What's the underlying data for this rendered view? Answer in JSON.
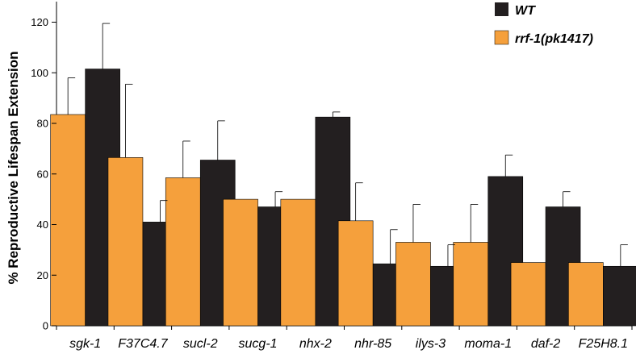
{
  "chart_data": {
    "type": "bar",
    "title": "",
    "xlabel": "",
    "ylabel": "% Reproductive Lifespan Extension",
    "ylim": [
      0,
      125
    ],
    "yticks": [
      0,
      20,
      40,
      60,
      80,
      100,
      120
    ],
    "grid": false,
    "legend_position": "top-right",
    "categories": [
      "sgk-1",
      "F37C4.7",
      "sucl-2",
      "sucg-1",
      "nhx-2",
      "nhr-85",
      "ilys-3",
      "moma-1",
      "daf-2",
      "F25H8.1"
    ],
    "series": [
      {
        "name": "rrf-1(pk1417)",
        "color": "#f5a03c",
        "values": [
          83.5,
          66.5,
          58.5,
          50,
          50,
          41.5,
          33,
          33,
          25,
          25
        ],
        "error": [
          14.5,
          29,
          14.5,
          null,
          null,
          15,
          15,
          15,
          null,
          null
        ]
      },
      {
        "name": "WT",
        "color": "#231f20",
        "values": [
          101.5,
          41,
          65.5,
          47,
          82.5,
          24.5,
          23.5,
          59,
          47,
          23.5
        ],
        "error": [
          18,
          8.5,
          15.5,
          6,
          2,
          13.5,
          8.5,
          8.5,
          6,
          8.5
        ]
      }
    ]
  }
}
